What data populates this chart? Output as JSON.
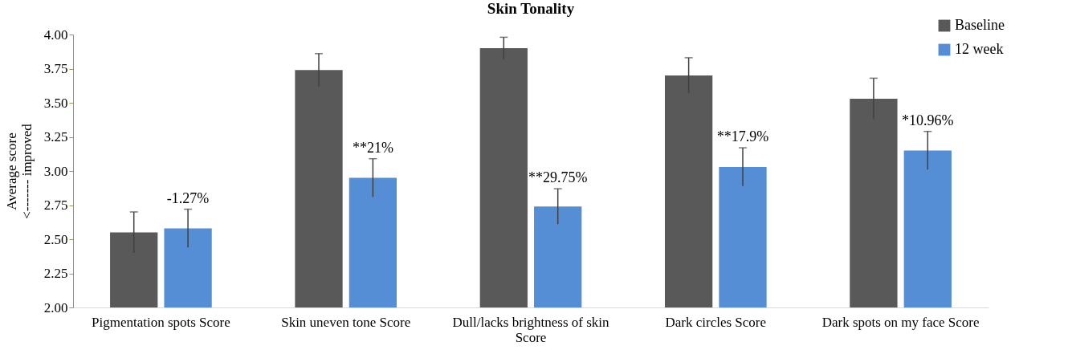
{
  "chart_data": {
    "type": "bar",
    "title": "Skin Tonality",
    "ylabel": "Average score\n<------- improved",
    "categories": [
      "Pigmentation spots Score",
      "Skin uneven tone Score",
      "Dull/lacks brightness of skin Score",
      "Dark circles Score",
      "Dark spots on my face Score"
    ],
    "series": [
      {
        "name": "Baseline",
        "color": "#595959",
        "values": [
          2.55,
          3.74,
          3.9,
          3.7,
          3.53
        ],
        "errors": [
          0.15,
          0.12,
          0.08,
          0.13,
          0.15
        ]
      },
      {
        "name": "12 week",
        "color": "#558ed5",
        "values": [
          2.58,
          2.95,
          2.74,
          3.03,
          3.15
        ],
        "errors": [
          0.14,
          0.14,
          0.13,
          0.14,
          0.14
        ]
      }
    ],
    "annotations": [
      "-1.27%",
      "**21%",
      "**29.75%",
      "**17.9%",
      "*10.96%"
    ],
    "ylim": [
      2.0,
      4.0
    ],
    "yticks": [
      {
        "value": 2.0,
        "label": "2.00"
      },
      {
        "value": 2.25,
        "label": "2.25"
      },
      {
        "value": 2.5,
        "label": "2.50"
      },
      {
        "value": 2.75,
        "label": "2.75"
      },
      {
        "value": 3.0,
        "label": "3.00"
      },
      {
        "value": 3.25,
        "label": "3.25"
      },
      {
        "value": 3.5,
        "label": "3.50"
      },
      {
        "value": 3.75,
        "label": "3.75"
      },
      {
        "value": 4.0,
        "label": "4.00"
      }
    ],
    "grid": false,
    "legend": "top right"
  }
}
